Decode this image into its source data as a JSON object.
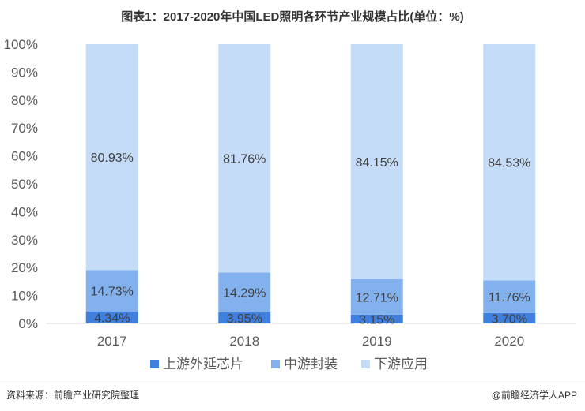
{
  "chart_data": {
    "type": "bar",
    "stacked": true,
    "title": "图表1：2017-2020年中国LED照明各环节产业规模占比(单位：%)",
    "categories": [
      "2017",
      "2018",
      "2019",
      "2020"
    ],
    "ylim": [
      0,
      100
    ],
    "yticks": [
      "0%",
      "10%",
      "20%",
      "30%",
      "40%",
      "50%",
      "60%",
      "70%",
      "80%",
      "90%",
      "100%"
    ],
    "legend_position": "bottom",
    "grid": false,
    "series": [
      {
        "name": "上游外延芯片",
        "values": [
          4.34,
          3.95,
          3.15,
          3.7
        ],
        "labels": [
          "4.34%",
          "3.95%",
          "3.15%",
          "3.70%"
        ],
        "color": "#3f7fde"
      },
      {
        "name": "中游封装",
        "values": [
          14.73,
          14.29,
          12.71,
          11.76
        ],
        "labels": [
          "14.73%",
          "14.29%",
          "12.71%",
          "11.76%"
        ],
        "color": "#83b1ee"
      },
      {
        "name": "下游应用",
        "values": [
          80.93,
          81.76,
          84.15,
          84.53
        ],
        "labels": [
          "80.93%",
          "81.76%",
          "84.15%",
          "84.53%"
        ],
        "color": "#c4dcf8"
      }
    ]
  },
  "footer": {
    "source": "资料来源：前瞻产业研究院整理",
    "brand": "@前瞻经济学人APP"
  }
}
